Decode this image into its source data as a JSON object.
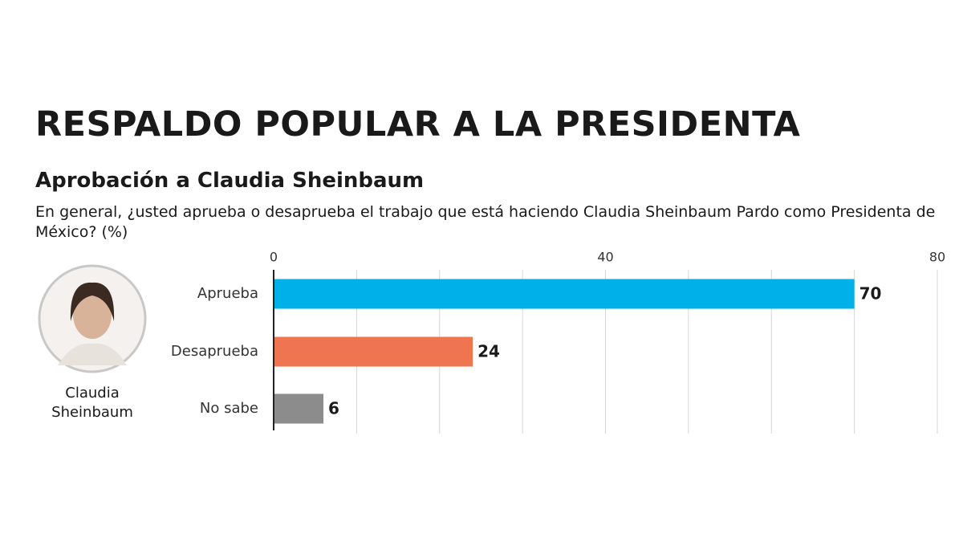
{
  "chart_data": {
    "type": "bar",
    "orientation": "horizontal",
    "title": "RESPALDO POPULAR A LA PRESIDENTA",
    "subtitle": "Aprobación a Claudia Sheinbaum",
    "question": "En general, ¿usted aprueba o desaprueba el trabajo que está haciendo Claudia Sheinbaum Pardo como Presidenta de México? (%)",
    "photo_caption": "Claudia Sheinbaum",
    "categories": [
      "Aprueba",
      "Desaprueba",
      "No sabe"
    ],
    "values": [
      70,
      24,
      6
    ],
    "colors": [
      "#00b1e9",
      "#ef7550",
      "#8c8c8c"
    ],
    "xlim": [
      0,
      80
    ],
    "xticks": [
      0,
      40,
      80
    ],
    "xgrid": [
      10,
      20,
      30,
      40,
      50,
      60,
      70,
      80
    ],
    "grid": true
  }
}
